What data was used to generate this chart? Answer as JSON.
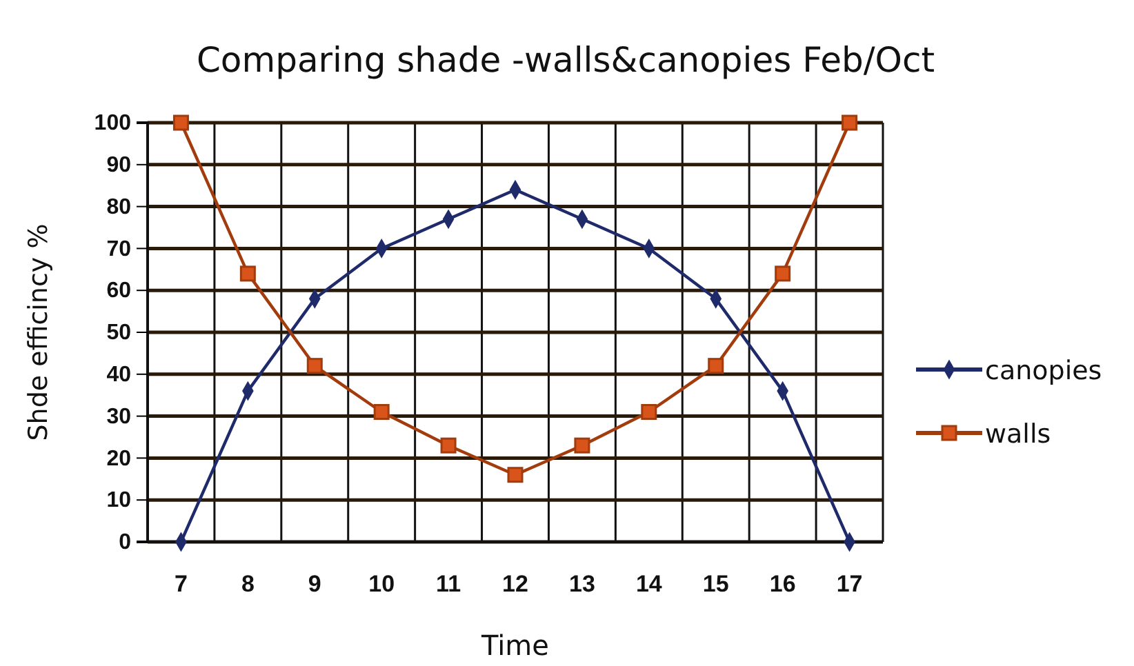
{
  "chart_data": {
    "type": "line",
    "title": "Comparing shade -walls&canopies Feb/Oct",
    "xlabel": "Time",
    "ylabel": "Shde efficincy %",
    "categories": [
      "7",
      "8",
      "9",
      "10",
      "11",
      "12",
      "13",
      "14",
      "15",
      "16",
      "17"
    ],
    "series": [
      {
        "name": "canopies",
        "color": "#1f2a6b",
        "marker": "diamond",
        "values": [
          0,
          36,
          58,
          70,
          77,
          84,
          77,
          70,
          58,
          36,
          0
        ]
      },
      {
        "name": "walls",
        "color": "#a33c0c",
        "marker": "square",
        "values": [
          100,
          64,
          42,
          31,
          23,
          16,
          23,
          31,
          42,
          64,
          100
        ]
      }
    ],
    "ylim": [
      0,
      100
    ],
    "yticks": [
      0,
      10,
      20,
      30,
      40,
      50,
      60,
      70,
      80,
      90,
      100
    ],
    "grid": true,
    "legend": "right",
    "line_style": "solid"
  }
}
